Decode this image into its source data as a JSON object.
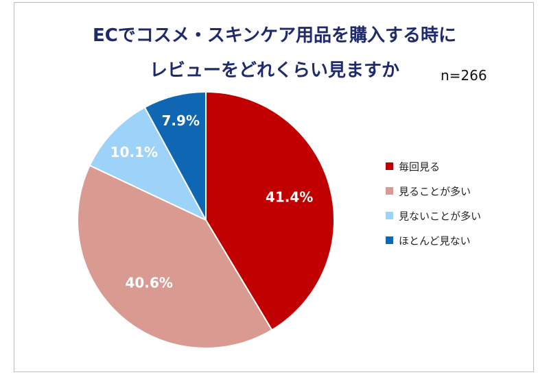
{
  "chart_data": {
    "type": "pie",
    "title": "ECでコスメ・スキンケア用品を購入する時に",
    "subtitle": "レビューをどれくらい見ますか",
    "sample_size": "n=266",
    "categories": [
      "毎回見る",
      "見ることが多い",
      "見ないことが多い",
      "ほとんど見ない"
    ],
    "values": [
      41.4,
      40.6,
      10.1,
      7.9
    ],
    "data_labels": [
      "41.4%",
      "40.6%",
      "10.1%",
      "7.9%"
    ],
    "colors": [
      "#c00000",
      "#d99b91",
      "#9dd3f8",
      "#0f67b4"
    ],
    "start_angle": "12 o'clock",
    "direction": "clockwise",
    "legend_position": "right"
  }
}
